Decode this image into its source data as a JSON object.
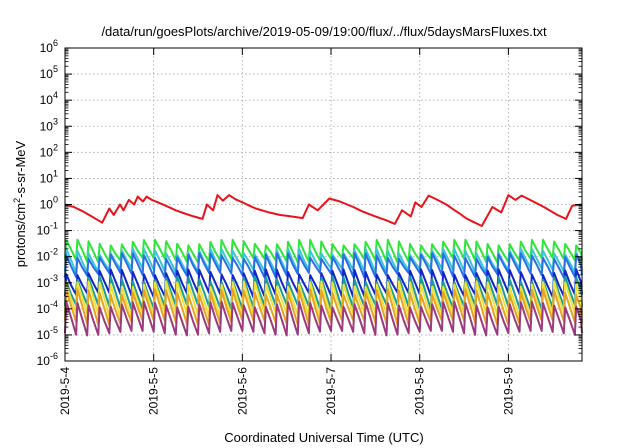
{
  "chart_data": {
    "type": "line",
    "title": "/data/run/goesPlots/archive/2019-05-09/19:00/flux/../flux/5daysMarsFluxes.txt",
    "xlabel": "Coordinated Universal Time (UTC)",
    "ylabel": "protons/cm²-s-sr-MeV",
    "ylabel_parts": {
      "pre": "protons/cm",
      "sup": "2",
      "post": "-s-sr-MeV"
    },
    "yscale": "log",
    "ylim": [
      1e-06,
      1000000.0
    ],
    "xlim": [
      0,
      5.83
    ],
    "y_ticks": [
      {
        "value": 1e-06,
        "base": "10",
        "exp": "-6"
      },
      {
        "value": 1e-05,
        "base": "10",
        "exp": "-5"
      },
      {
        "value": 0.0001,
        "base": "10",
        "exp": "-4"
      },
      {
        "value": 0.001,
        "base": "10",
        "exp": "-3"
      },
      {
        "value": 0.01,
        "base": "10",
        "exp": "-2"
      },
      {
        "value": 0.1,
        "base": "10",
        "exp": "-1"
      },
      {
        "value": 1.0,
        "base": "10",
        "exp": "0"
      },
      {
        "value": 10.0,
        "base": "10",
        "exp": "1"
      },
      {
        "value": 100.0,
        "base": "10",
        "exp": "2"
      },
      {
        "value": 1000.0,
        "base": "10",
        "exp": "3"
      },
      {
        "value": 10000.0,
        "base": "10",
        "exp": "4"
      },
      {
        "value": 100000.0,
        "base": "10",
        "exp": "5"
      },
      {
        "value": 1000000.0,
        "base": "10",
        "exp": "6"
      }
    ],
    "x_ticks": [
      {
        "value": 0,
        "label": "2019-5-4"
      },
      {
        "value": 1,
        "label": "2019-5-5"
      },
      {
        "value": 2,
        "label": "2019-5-6"
      },
      {
        "value": 3,
        "label": "2019-5-7"
      },
      {
        "value": 4,
        "label": "2019-5-8"
      },
      {
        "value": 5,
        "label": "2019-5-9"
      }
    ],
    "grid": true,
    "legend": "none",
    "series": [
      {
        "color": "#e8141c",
        "style": "slow-sawtooth",
        "x": [
          0.0,
          0.1,
          0.2,
          0.3,
          0.42,
          0.5,
          0.55,
          0.62,
          0.66,
          0.72,
          0.78,
          0.82,
          0.88,
          0.92,
          0.98,
          1.05,
          1.15,
          1.25,
          1.35,
          1.45,
          1.55,
          1.6,
          1.67,
          1.72,
          1.78,
          1.85,
          1.92,
          2.0,
          2.08,
          2.15,
          2.3,
          2.42,
          2.55,
          2.68,
          2.75,
          2.85,
          2.98,
          3.1,
          3.25,
          3.35,
          3.5,
          3.62,
          3.72,
          3.8,
          3.9,
          3.95,
          4.02,
          4.1,
          4.2,
          4.3,
          4.38,
          4.45,
          4.52,
          4.6,
          4.7,
          4.82,
          4.92,
          5.0,
          5.08,
          5.15,
          5.28,
          5.4,
          5.55,
          5.65,
          5.72,
          5.83
        ],
        "y": [
          1.0,
          0.8,
          0.55,
          0.35,
          0.2,
          0.7,
          0.4,
          1.0,
          0.6,
          1.5,
          1.0,
          2.0,
          1.3,
          2.0,
          1.5,
          1.2,
          0.85,
          0.6,
          0.45,
          0.35,
          0.28,
          1.0,
          0.6,
          2.3,
          1.4,
          2.3,
          1.6,
          1.2,
          0.9,
          0.7,
          0.5,
          0.4,
          0.35,
          0.3,
          1.0,
          0.6,
          1.7,
          1.3,
          0.8,
          0.55,
          0.35,
          0.25,
          0.18,
          0.6,
          0.35,
          1.2,
          0.8,
          2.2,
          1.5,
          1.0,
          0.65,
          0.45,
          0.3,
          0.22,
          0.15,
          0.8,
          0.5,
          2.3,
          1.5,
          2.2,
          1.3,
          0.8,
          0.4,
          0.28,
          0.9,
          1.0
        ]
      },
      {
        "color": "#2ee63a",
        "style": "fast-sawtooth",
        "period": 0.125,
        "peak": 0.036,
        "trough": 0.0075
      },
      {
        "color": "#39c7d6",
        "style": "fast-sawtooth",
        "period": 0.125,
        "peak": 0.016,
        "trough": 0.003
      },
      {
        "color": "#2a6fe8",
        "style": "fast-sawtooth",
        "period": 0.125,
        "peak": 0.011,
        "trough": 0.002
      },
      {
        "color": "#1226c8",
        "style": "fast-sawtooth",
        "period": 0.125,
        "peak": 0.0026,
        "trough": 0.00035
      },
      {
        "color": "#1a9e9a",
        "style": "fast-sawtooth",
        "period": 0.125,
        "peak": 0.0014,
        "trough": 0.00012
      },
      {
        "color": "#f0e13a",
        "style": "fast-sawtooth",
        "period": 0.125,
        "peak": 0.0009,
        "trough": 6e-05
      },
      {
        "color": "#e7a321",
        "style": "fast-sawtooth",
        "period": 0.125,
        "peak": 0.00045,
        "trough": 3e-05
      },
      {
        "color": "#9b3a7c",
        "style": "fast-sawtooth",
        "period": 0.125,
        "peak": 0.00015,
        "trough": 1.2e-05
      }
    ]
  }
}
